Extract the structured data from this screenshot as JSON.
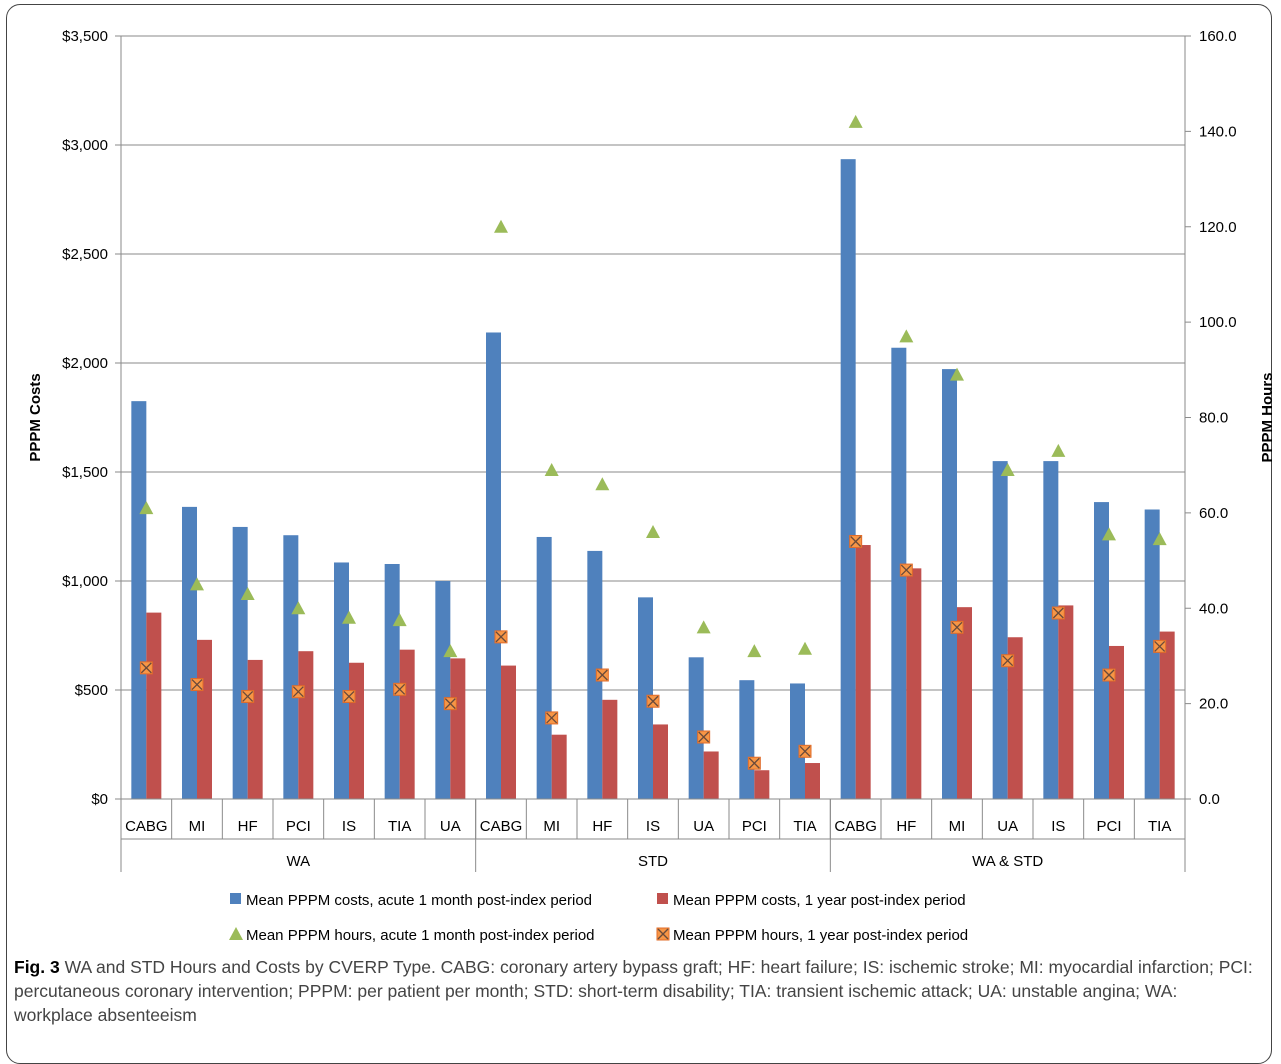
{
  "caption": {
    "label": "Fig. 3",
    "text": "WA and STD Hours and Costs by CVERP Type. CABG: coronary artery bypass graft; HF: heart failure; IS: ischemic stroke; MI: myocardial infarction; PCI: percutaneous coronary intervention; PPPM: per patient per month; STD: short-term disability; TIA: transient ischemic attack; UA: unstable angina; WA: workplace absenteeism"
  },
  "chart_data": {
    "type": "bar",
    "title": "",
    "y_left": {
      "label": "PPPM Costs",
      "ylim": [
        0,
        3500
      ],
      "ticks": [
        0,
        500,
        1000,
        1500,
        2000,
        2500,
        3000,
        3500
      ],
      "tick_labels": [
        "$0",
        "$500",
        "$1,000",
        "$1,500",
        "$2,000",
        "$2,500",
        "$3,000",
        "$3,500"
      ]
    },
    "y_right": {
      "label": "PPPM Hours",
      "ylim": [
        0,
        160
      ],
      "ticks": [
        0,
        20,
        40,
        60,
        80,
        100,
        120,
        140,
        160
      ],
      "tick_labels": [
        "0.0",
        "20.0",
        "40.0",
        "60.0",
        "80.0",
        "100.0",
        "120.0",
        "140.0",
        "160.0"
      ]
    },
    "groups": [
      {
        "name": "WA",
        "categories": [
          "CABG",
          "MI",
          "HF",
          "PCI",
          "IS",
          "TIA",
          "UA"
        ]
      },
      {
        "name": "STD",
        "categories": [
          "CABG",
          "MI",
          "HF",
          "IS",
          "UA",
          "PCI",
          "TIA"
        ]
      },
      {
        "name": "WA & STD",
        "categories": [
          "CABG",
          "HF",
          "MI",
          "UA",
          "IS",
          "PCI",
          "TIA"
        ]
      }
    ],
    "series": [
      {
        "name": "Mean PPPM costs, acute 1 month  post-index period",
        "kind": "bar",
        "axis": "left",
        "color": "#4f81bd",
        "values": [
          1825,
          1340,
          1248,
          1210,
          1085,
          1078,
          1000,
          2140,
          1202,
          1138,
          925,
          650,
          545,
          530,
          2935,
          2070,
          1972,
          1550,
          1550,
          1362,
          1328
        ]
      },
      {
        "name": "Mean PPPM costs, 1 year post-index period",
        "kind": "bar",
        "axis": "left",
        "color": "#c0504d",
        "values": [
          855,
          730,
          638,
          678,
          625,
          685,
          645,
          612,
          295,
          455,
          342,
          218,
          132,
          165,
          1165,
          1058,
          880,
          742,
          888,
          702,
          768
        ]
      },
      {
        "name": "Mean PPPM hours, acute 1 month post-index period",
        "kind": "triangle",
        "axis": "right",
        "color": "#9bbb59",
        "values": [
          61.0,
          45.0,
          43.0,
          40.0,
          38.0,
          37.5,
          31.0,
          120.0,
          69.0,
          66.0,
          56.0,
          36.0,
          31.0,
          31.5,
          142.0,
          97.0,
          89.0,
          69.0,
          73.0,
          55.5,
          54.5
        ]
      },
      {
        "name": "Mean PPPM hours, 1 year post-index period",
        "kind": "xsquare",
        "axis": "right",
        "color": "#f79646",
        "values": [
          27.5,
          24.0,
          21.5,
          22.5,
          21.5,
          23.0,
          20.0,
          34.0,
          17.0,
          26.0,
          20.5,
          13.0,
          7.5,
          10.0,
          54.0,
          48.0,
          36.0,
          29.0,
          39.0,
          26.0,
          32.0
        ]
      }
    ],
    "legend_position": "bottom",
    "grid": true
  }
}
